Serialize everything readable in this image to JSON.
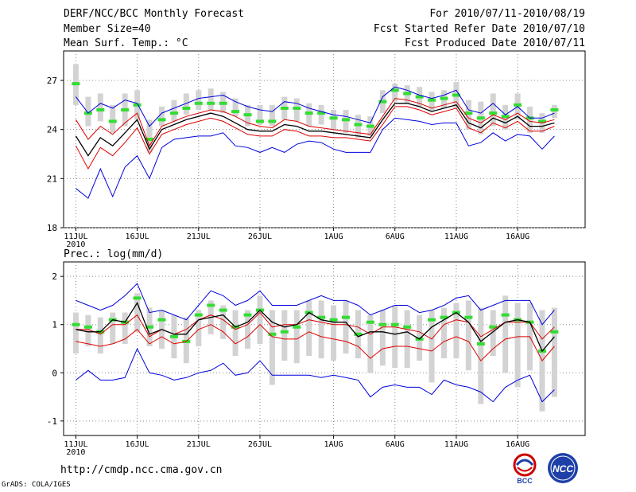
{
  "header": {
    "title": "DERF/NCC/BCC Monthly Forecast",
    "member_size": "Member Size=40",
    "temp_label": "Mean Surf. Temp.: °C",
    "period": "For 2010/07/11-2010/08/19",
    "start_date": "Fcst Started Refer Date 2010/07/10",
    "produced_date": "Fcst Produced Date 2010/07/11"
  },
  "footer": {
    "url": "http://cmdp.ncc.cma.gov.cn",
    "grads": "GrADS: COLA/IGES",
    "logo_bcc": "BCC",
    "logo_ncc": "NCC"
  },
  "colors": {
    "max_min": "#0000dd",
    "upper_lower": "#dd0000",
    "mean": "#000000",
    "box": "#d3d3d3",
    "green": "#33dd33",
    "grid": "#888888"
  },
  "chart_data": [
    {
      "type": "line",
      "title": "Mean Surf. Temp.: °C",
      "x_tick_labels": [
        "11JUL",
        "16JUL",
        "21JUL",
        "26JUL",
        "1AUG",
        "6AUG",
        "11AUG",
        "16AUG"
      ],
      "x_tick_days": [
        0,
        5,
        10,
        15,
        21,
        26,
        31,
        36
      ],
      "year_label": "2010",
      "n_days": 40,
      "ylim": [
        18,
        28.8
      ],
      "yticks": [
        18,
        21,
        24,
        27
      ],
      "series": {
        "max": [
          26.0,
          25.0,
          25.6,
          25.3,
          25.8,
          25.6,
          24.2,
          25.0,
          25.3,
          25.6,
          25.9,
          26.0,
          26.1,
          25.7,
          25.4,
          25.2,
          25.1,
          25.7,
          25.6,
          25.3,
          25.1,
          24.9,
          24.8,
          24.6,
          24.4,
          26.0,
          26.6,
          26.4,
          26.1,
          25.9,
          26.1,
          26.4,
          25.2,
          25.0,
          25.6,
          24.9,
          25.4,
          24.7,
          24.7,
          25.0
        ],
        "upper": [
          24.6,
          23.4,
          24.2,
          23.7,
          24.4,
          25.0,
          23.0,
          24.2,
          24.5,
          24.8,
          25.0,
          25.2,
          25.1,
          24.8,
          24.4,
          24.2,
          24.1,
          24.6,
          24.5,
          24.2,
          24.1,
          24.0,
          23.9,
          23.8,
          23.7,
          24.8,
          25.9,
          25.8,
          25.6,
          25.3,
          25.5,
          25.7,
          24.7,
          24.4,
          24.9,
          24.6,
          25.0,
          24.5,
          24.4,
          24.6
        ],
        "mean": [
          23.6,
          22.4,
          23.5,
          23.0,
          23.8,
          24.6,
          22.8,
          24.0,
          24.3,
          24.6,
          24.8,
          25.0,
          24.8,
          24.4,
          24.0,
          23.9,
          23.9,
          24.3,
          24.2,
          23.9,
          23.9,
          23.8,
          23.7,
          23.6,
          23.5,
          24.6,
          25.6,
          25.6,
          25.4,
          25.1,
          25.3,
          25.5,
          24.4,
          24.1,
          24.7,
          24.4,
          24.8,
          24.2,
          24.2,
          24.4
        ],
        "lower": [
          23.0,
          21.6,
          22.9,
          22.4,
          23.2,
          24.1,
          22.5,
          23.7,
          24.0,
          24.3,
          24.5,
          24.7,
          24.5,
          24.1,
          23.7,
          23.6,
          23.6,
          24.0,
          23.9,
          23.6,
          23.6,
          23.5,
          23.5,
          23.4,
          23.3,
          24.3,
          25.4,
          25.4,
          25.2,
          24.9,
          25.1,
          25.3,
          24.1,
          23.8,
          24.4,
          24.1,
          24.5,
          23.9,
          23.9,
          24.2
        ],
        "min": [
          20.4,
          19.8,
          21.6,
          19.9,
          21.7,
          22.4,
          21.0,
          22.9,
          23.4,
          23.5,
          23.6,
          23.6,
          23.8,
          23.0,
          22.9,
          22.6,
          22.9,
          22.6,
          23.1,
          23.3,
          23.2,
          22.8,
          22.6,
          22.6,
          22.6,
          24.0,
          24.7,
          24.6,
          24.5,
          24.3,
          24.4,
          24.4,
          23.0,
          23.2,
          23.8,
          23.3,
          23.7,
          23.6,
          22.8,
          23.6
        ],
        "green": [
          26.8,
          25.0,
          25.2,
          24.5,
          25.2,
          25.5,
          23.4,
          24.6,
          25.0,
          25.3,
          25.6,
          25.6,
          25.6,
          25.1,
          24.9,
          24.5,
          24.5,
          25.3,
          25.3,
          25.0,
          25.0,
          24.7,
          24.6,
          24.3,
          24.2,
          25.7,
          26.4,
          26.2,
          26.0,
          25.8,
          25.9,
          26.1,
          25.0,
          24.7,
          25.0,
          24.8,
          25.5,
          24.7,
          24.5,
          25.2
        ],
        "box_top": [
          28.0,
          26.0,
          26.2,
          25.5,
          26.2,
          26.4,
          24.6,
          25.4,
          25.8,
          26.2,
          26.4,
          26.5,
          26.3,
          25.9,
          25.5,
          25.5,
          25.5,
          26.0,
          25.9,
          25.6,
          25.5,
          25.2,
          25.2,
          24.9,
          24.8,
          26.4,
          26.8,
          26.7,
          26.6,
          26.3,
          26.4,
          26.9,
          25.8,
          25.7,
          26.2,
          25.5,
          26.2,
          25.4,
          25.0,
          25.5
        ],
        "box_bot": [
          25.5,
          24.2,
          24.5,
          23.8,
          24.2,
          24.6,
          22.6,
          24.2,
          24.5,
          24.9,
          25.2,
          25.2,
          25.0,
          24.8,
          24.2,
          24.3,
          24.2,
          24.6,
          24.5,
          24.2,
          24.3,
          24.0,
          23.8,
          23.5,
          23.6,
          25.0,
          25.7,
          25.6,
          25.4,
          25.1,
          25.3,
          25.3,
          24.0,
          23.7,
          24.2,
          24.0,
          24.6,
          23.8,
          23.8,
          24.7
        ]
      }
    },
    {
      "type": "line",
      "title": "Prec.: log(mm/d)",
      "x_tick_labels": [
        "11JUL",
        "16JUL",
        "21JUL",
        "26JUL",
        "1AUG",
        "6AUG",
        "11AUG",
        "16AUG"
      ],
      "x_tick_days": [
        0,
        5,
        10,
        15,
        21,
        26,
        31,
        36
      ],
      "year_label": "2010",
      "n_days": 40,
      "ylim": [
        -1.3,
        2.3
      ],
      "yticks": [
        -1,
        0,
        1,
        2
      ],
      "series": {
        "max": [
          1.5,
          1.4,
          1.3,
          1.4,
          1.6,
          1.85,
          1.25,
          1.3,
          1.2,
          1.1,
          1.4,
          1.7,
          1.6,
          1.4,
          1.5,
          1.7,
          1.4,
          1.4,
          1.4,
          1.5,
          1.6,
          1.5,
          1.5,
          1.4,
          1.2,
          1.3,
          1.4,
          1.4,
          1.25,
          1.3,
          1.4,
          1.55,
          1.6,
          1.3,
          1.4,
          1.5,
          1.5,
          1.5,
          1.0,
          1.3
        ],
        "upper": [
          0.9,
          0.9,
          0.8,
          1.0,
          1.0,
          1.2,
          0.75,
          0.9,
          0.8,
          0.9,
          1.1,
          1.2,
          1.1,
          0.9,
          1.0,
          1.25,
          0.95,
          1.0,
          1.0,
          1.1,
          1.05,
          1.0,
          1.0,
          0.95,
          0.8,
          0.95,
          0.95,
          0.9,
          0.85,
          0.7,
          1.0,
          1.1,
          1.05,
          0.75,
          0.9,
          1.05,
          1.05,
          1.05,
          0.7,
          0.95
        ],
        "mean": [
          0.9,
          0.85,
          0.85,
          1.1,
          1.05,
          1.45,
          0.8,
          0.9,
          0.8,
          0.8,
          1.1,
          1.15,
          1.2,
          0.95,
          1.05,
          1.3,
          1.05,
          0.95,
          1.0,
          1.25,
          1.1,
          1.05,
          1.05,
          0.75,
          0.85,
          0.85,
          0.8,
          0.85,
          0.7,
          0.95,
          1.1,
          1.25,
          1.05,
          0.65,
          0.85,
          1.05,
          1.1,
          1.05,
          0.45,
          0.75
        ],
        "lower": [
          0.65,
          0.6,
          0.55,
          0.6,
          0.7,
          0.9,
          0.6,
          0.75,
          0.6,
          0.65,
          0.9,
          1.0,
          0.85,
          0.6,
          0.75,
          1.0,
          0.75,
          0.7,
          0.7,
          0.85,
          0.75,
          0.7,
          0.65,
          0.55,
          0.3,
          0.5,
          0.55,
          0.55,
          0.5,
          0.45,
          0.65,
          0.75,
          0.65,
          0.25,
          0.5,
          0.7,
          0.75,
          0.75,
          0.25,
          0.55
        ],
        "min": [
          -0.15,
          0.05,
          -0.15,
          -0.15,
          -0.1,
          0.5,
          0.0,
          -0.05,
          -0.15,
          -0.1,
          0.0,
          0.05,
          0.2,
          -0.05,
          0.0,
          0.25,
          -0.05,
          -0.05,
          -0.05,
          -0.05,
          -0.1,
          -0.05,
          -0.1,
          -0.15,
          -0.5,
          -0.3,
          -0.25,
          -0.3,
          -0.3,
          -0.45,
          -0.15,
          -0.25,
          -0.3,
          -0.4,
          -0.6,
          -0.3,
          -0.15,
          -0.05,
          -0.6,
          -0.35
        ],
        "green": [
          1.0,
          0.95,
          0.85,
          1.1,
          1.05,
          1.55,
          0.95,
          1.1,
          0.75,
          0.65,
          1.2,
          1.4,
          1.3,
          0.95,
          1.2,
          1.3,
          0.8,
          0.85,
          0.95,
          1.25,
          1.15,
          1.1,
          1.15,
          0.8,
          1.05,
          1.0,
          1.0,
          0.95,
          0.7,
          1.1,
          1.15,
          1.25,
          1.15,
          0.6,
          0.95,
          1.2,
          1.1,
          1.05,
          0.45,
          0.85
        ],
        "box_top": [
          1.25,
          1.2,
          1.15,
          1.25,
          1.25,
          1.65,
          1.35,
          1.3,
          1.2,
          1.15,
          1.3,
          1.5,
          1.4,
          1.3,
          1.3,
          1.6,
          1.3,
          1.3,
          1.3,
          1.5,
          1.5,
          1.4,
          1.5,
          1.3,
          1.2,
          1.3,
          1.4,
          1.3,
          1.2,
          1.3,
          1.35,
          1.45,
          1.5,
          1.35,
          1.3,
          1.6,
          1.45,
          1.45,
          1.3,
          1.35
        ],
        "box_bot": [
          0.4,
          0.55,
          0.4,
          0.6,
          0.6,
          0.85,
          0.55,
          0.5,
          0.3,
          0.2,
          0.55,
          0.8,
          0.7,
          0.35,
          0.5,
          0.6,
          -0.25,
          0.25,
          0.2,
          0.35,
          0.3,
          0.25,
          0.4,
          0.3,
          0.0,
          0.15,
          0.1,
          0.1,
          0.25,
          -0.2,
          0.3,
          0.3,
          0.05,
          -0.65,
          0.35,
          0.0,
          -0.3,
          0.05,
          -0.8,
          -0.5
        ]
      }
    }
  ]
}
